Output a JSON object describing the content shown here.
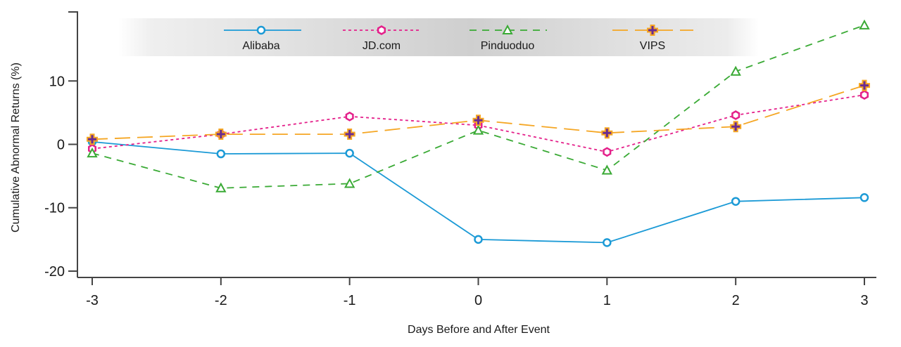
{
  "chart_data": {
    "type": "line",
    "title": "",
    "xlabel": "Days Before and After Event",
    "ylabel": "Cumulative Abnormal Returns (%)",
    "x": [
      -3,
      -2,
      -1,
      0,
      1,
      2,
      3
    ],
    "x_tick_labels": [
      "-3",
      "-2",
      "-1",
      "0",
      "1",
      "2",
      "3"
    ],
    "xlim": [
      -3,
      3
    ],
    "ylim": [
      -21,
      21
    ],
    "y_ticks": [
      -20,
      -10,
      0,
      10
    ],
    "y_tick_labels": [
      "-20",
      "-10",
      "0",
      "10"
    ],
    "grid": false,
    "legend_position": "top",
    "series": [
      {
        "name": "Alibaba",
        "color": "#1b9ad6",
        "marker": "circle",
        "dash": "solid",
        "values": [
          0.4,
          -1.5,
          -1.4,
          -15.0,
          -15.5,
          -9.0,
          -8.4
        ]
      },
      {
        "name": "JD.com",
        "color": "#e4208a",
        "marker": "hexagon",
        "dash": "dotted",
        "values": [
          -0.7,
          1.6,
          4.4,
          3.0,
          -1.2,
          4.6,
          7.8
        ]
      },
      {
        "name": "Pinduoduo",
        "color": "#3aaa35",
        "marker": "triangle",
        "dash": "dashed",
        "values": [
          -1.4,
          -6.9,
          -6.2,
          2.2,
          -4.1,
          11.5,
          18.8
        ]
      },
      {
        "name": "VIPS",
        "color": "#f5a623",
        "marker": "cross",
        "markerFill": "#6a2c91",
        "dash": "longdash",
        "values": [
          0.8,
          1.6,
          1.6,
          3.8,
          1.8,
          2.8,
          9.3
        ]
      }
    ]
  }
}
